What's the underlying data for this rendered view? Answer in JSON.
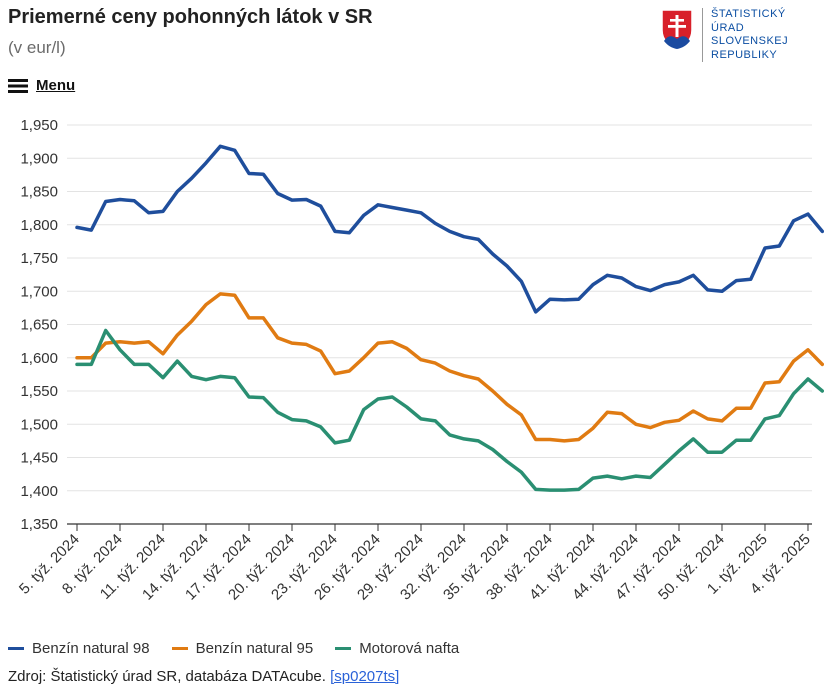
{
  "header": {
    "title": "Priemerné ceny pohonných látok v SR",
    "subtitle": "(v eur/l)"
  },
  "menu": {
    "label": "Menu"
  },
  "logo": {
    "lines": [
      "ŠTATISTICKÝ",
      "ÚRAD",
      "SLOVENSKEJ",
      "REPUBLIKY"
    ]
  },
  "colors": {
    "series": [
      "#1f4e9c",
      "#e07b12",
      "#2a8f72"
    ],
    "grid": "#e3e3e3",
    "axis": "#333333"
  },
  "chart_data": {
    "type": "line",
    "title": "Priemerné ceny pohonných látok v SR",
    "subtitle": "(v eur/l)",
    "ylim": [
      1.35,
      1.95
    ],
    "yticks": [
      "1,350",
      "1,400",
      "1,450",
      "1,500",
      "1,550",
      "1,600",
      "1,650",
      "1,700",
      "1,750",
      "1,800",
      "1,850",
      "1,900",
      "1,950"
    ],
    "xticks": [
      "5. týž. 2024",
      "8. týž. 2024",
      "11. týž. 2024",
      "14. týž. 2024",
      "17. týž. 2024",
      "20. týž. 2024",
      "23. týž. 2024",
      "26. týž. 2024",
      "29. týž. 2024",
      "32. týž. 2024",
      "35. týž. 2024",
      "38. týž. 2024",
      "41. týž. 2024",
      "44. týž. 2024",
      "47. týž. 2024",
      "50. týž. 2024",
      "1. týž. 2025",
      "4. týž. 2025"
    ],
    "grid": true,
    "legend_position": "bottom",
    "series": [
      {
        "name": "Benzín natural 98",
        "values": [
          1.796,
          1.792,
          1.835,
          1.838,
          1.836,
          1.818,
          1.82,
          1.85,
          1.87,
          1.893,
          1.918,
          1.912,
          1.877,
          1.876,
          1.847,
          1.837,
          1.838,
          1.828,
          1.79,
          1.788,
          1.814,
          1.83,
          1.826,
          1.822,
          1.818,
          1.802,
          1.79,
          1.782,
          1.778,
          1.756,
          1.738,
          1.715,
          1.669,
          1.688,
          1.687,
          1.688,
          1.71,
          1.724,
          1.72,
          1.707,
          1.701,
          1.71,
          1.714,
          1.724,
          1.702,
          1.7,
          1.716,
          1.718,
          1.765,
          1.768,
          1.806,
          1.816,
          1.79
        ]
      },
      {
        "name": "Benzín natural 95",
        "values": [
          1.6,
          1.6,
          1.622,
          1.624,
          1.622,
          1.624,
          1.606,
          1.634,
          1.655,
          1.68,
          1.696,
          1.694,
          1.66,
          1.66,
          1.63,
          1.622,
          1.62,
          1.61,
          1.576,
          1.58,
          1.6,
          1.622,
          1.624,
          1.614,
          1.597,
          1.592,
          1.58,
          1.573,
          1.568,
          1.55,
          1.53,
          1.514,
          1.477,
          1.477,
          1.475,
          1.477,
          1.494,
          1.518,
          1.516,
          1.5,
          1.495,
          1.503,
          1.506,
          1.52,
          1.508,
          1.505,
          1.524,
          1.524,
          1.562,
          1.564,
          1.595,
          1.612,
          1.59
        ]
      },
      {
        "name": "Motorová nafta",
        "values": [
          1.59,
          1.59,
          1.641,
          1.612,
          1.59,
          1.59,
          1.57,
          1.595,
          1.572,
          1.567,
          1.572,
          1.57,
          1.541,
          1.54,
          1.518,
          1.507,
          1.505,
          1.496,
          1.472,
          1.476,
          1.522,
          1.538,
          1.541,
          1.526,
          1.508,
          1.505,
          1.484,
          1.478,
          1.475,
          1.462,
          1.444,
          1.428,
          1.402,
          1.401,
          1.401,
          1.402,
          1.419,
          1.422,
          1.418,
          1.422,
          1.42,
          1.44,
          1.46,
          1.478,
          1.458,
          1.458,
          1.476,
          1.476,
          1.508,
          1.513,
          1.546,
          1.568,
          1.55
        ]
      }
    ]
  },
  "source": {
    "text": "Zdroj: Štatistický úrad SR, databáza DATAcube.",
    "link": "[sp0207ts]"
  }
}
